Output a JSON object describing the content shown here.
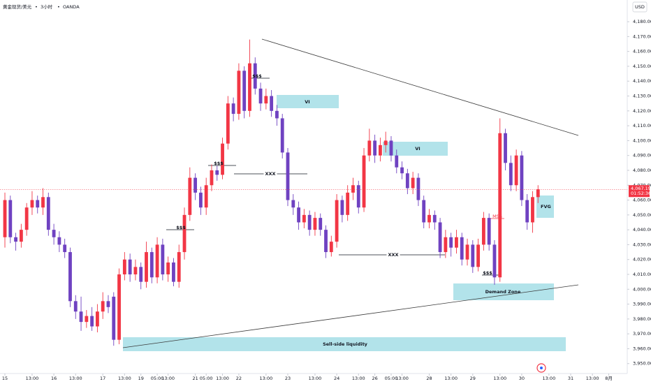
{
  "chart_data": {
    "type": "candlestick",
    "symbol": "黄金现货/美元",
    "interval": "3小时",
    "exchange": "OANDA",
    "currency": "USD",
    "up_color": "#f23645",
    "down_color": "#6f42c1",
    "xlim": [
      -0.9,
      114.4
    ],
    "ylim": [
      3943.3,
      4194.6
    ],
    "xticks": [
      {
        "value": 0,
        "label": "15"
      },
      {
        "value": 5,
        "label": "13:00"
      },
      {
        "value": 9,
        "label": "16"
      },
      {
        "value": 13,
        "label": "13:00"
      },
      {
        "value": 18,
        "label": "17"
      },
      {
        "value": 22,
        "label": "13:00"
      },
      {
        "value": 25,
        "label": "19"
      },
      {
        "value": 28,
        "label": "05:00"
      },
      {
        "value": 30,
        "label": "13:00"
      },
      {
        "value": 35,
        "label": "21"
      },
      {
        "value": 37,
        "label": "05:00"
      },
      {
        "value": 40,
        "label": "13:00"
      },
      {
        "value": 43,
        "label": "22"
      },
      {
        "value": 48,
        "label": "13:00"
      },
      {
        "value": 52,
        "label": "23"
      },
      {
        "value": 57,
        "label": "13:00"
      },
      {
        "value": 61,
        "label": "24"
      },
      {
        "value": 65,
        "label": "13:00"
      },
      {
        "value": 68,
        "label": "26"
      },
      {
        "value": 71,
        "label": "05:00"
      },
      {
        "value": 73,
        "label": "13:00"
      },
      {
        "value": 78,
        "label": "28"
      },
      {
        "value": 82,
        "label": "13:00"
      },
      {
        "value": 86,
        "label": "29"
      },
      {
        "value": 91,
        "label": "13:00"
      },
      {
        "value": 95,
        "label": "30"
      },
      {
        "value": 100,
        "label": "13:00"
      },
      {
        "value": 104,
        "label": "31"
      },
      {
        "value": 108,
        "label": "13:00"
      },
      {
        "value": 111,
        "label": "8月"
      }
    ],
    "yticks": [
      {
        "value": 3950,
        "label": "3,950.000"
      },
      {
        "value": 3960,
        "label": "3,960.000"
      },
      {
        "value": 3970,
        "label": "3,970.000"
      },
      {
        "value": 3980,
        "label": "3,980.000"
      },
      {
        "value": 3990,
        "label": "3,990.000"
      },
      {
        "value": 4000,
        "label": "4,000.000"
      },
      {
        "value": 4010,
        "label": "4,010.000"
      },
      {
        "value": 4020,
        "label": "4,020.000"
      },
      {
        "value": 4030,
        "label": "4,030.000"
      },
      {
        "value": 4040,
        "label": "4,040.000"
      },
      {
        "value": 4050,
        "label": "4,050.000"
      },
      {
        "value": 4060,
        "label": "4,060.000"
      },
      {
        "value": 4070,
        "label": "4,070.000"
      },
      {
        "value": 4080,
        "label": "4,080.000"
      },
      {
        "value": 4090,
        "label": "4,090.000"
      },
      {
        "value": 4100,
        "label": "4,100.000"
      },
      {
        "value": 4110,
        "label": "4,110.000"
      },
      {
        "value": 4120,
        "label": "4,120.000"
      },
      {
        "value": 4130,
        "label": "4,130.000"
      },
      {
        "value": 4140,
        "label": "4,140.000"
      },
      {
        "value": 4150,
        "label": "4,150.000"
      },
      {
        "value": 4160,
        "label": "4,160.000"
      },
      {
        "value": 4170,
        "label": "4,170.000"
      },
      {
        "value": 4180,
        "label": "4,180.000"
      }
    ],
    "last_price": {
      "value": 4067.19,
      "label": "4,067.190"
    },
    "countdown": "01:52:36",
    "annotations": [
      "VI",
      "VI",
      "FVG",
      "Demand Zone",
      "Sell-side liquidity",
      "$$$",
      "$$$",
      "$$$",
      "$$$",
      "XXX",
      "XXX",
      "MSS"
    ],
    "open": [
      4035,
      4060,
      4035,
      4032,
      4040,
      4055,
      4060,
      4055,
      4062,
      4040,
      4035,
      4030,
      4025,
      3992,
      3985,
      3978,
      3982,
      3975,
      3985,
      3992,
      3995,
      3966,
      4010,
      4020,
      4010,
      4015,
      4005,
      4025,
      4008,
      4030,
      4010,
      4018,
      4005,
      4025,
      4050,
      4075,
      4065,
      4055,
      4070,
      4080,
      4077,
      4098,
      4125,
      4118,
      4147,
      4120,
      4152,
      4135,
      4125,
      4130,
      4120,
      4115,
      4092,
      4060,
      4055,
      4045,
      4050,
      4040,
      4048,
      4040,
      4025,
      4032,
      4060,
      4050,
      4065,
      4070,
      4055,
      4090,
      4100,
      4090,
      4097,
      4100,
      4090,
      4082,
      4078,
      4068,
      4075,
      4060,
      4045,
      4050,
      4045,
      4025,
      4035,
      4028,
      4035,
      4020,
      4030,
      4015,
      4030,
      4048,
      4030,
      4008,
      4105,
      4085,
      4070,
      4090,
      4060,
      4045,
      4062
    ],
    "high": [
      4065,
      4063,
      4038,
      4044,
      4058,
      4066,
      4063,
      4068,
      4065,
      4044,
      4039,
      4034,
      4028,
      3996,
      3995,
      3986,
      3988,
      3990,
      3998,
      3996,
      3998,
      4014,
      4025,
      4024,
      4020,
      4018,
      4032,
      4028,
      4035,
      4034,
      4022,
      4021,
      4030,
      4055,
      4082,
      4078,
      4069,
      4075,
      4084,
      4083,
      4102,
      4130,
      4129,
      4152,
      4150,
      4168,
      4156,
      4139,
      4135,
      4134,
      4124,
      4118,
      4095,
      4064,
      4059,
      4054,
      4053,
      4052,
      4051,
      4043,
      4036,
      4064,
      4063,
      4070,
      4075,
      4073,
      4095,
      4108,
      4104,
      4102,
      4106,
      4103,
      4094,
      4086,
      4081,
      4079,
      4078,
      4063,
      4054,
      4053,
      4048,
      4040,
      4038,
      4040,
      4038,
      4034,
      4033,
      4034,
      4052,
      4051,
      4033,
      4115,
      4108,
      4090,
      4094,
      4093,
      4064,
      4066,
      4070
    ],
    "low": [
      4028,
      4031,
      4026,
      4028,
      4036,
      4050,
      4051,
      4050,
      4036,
      4030,
      4025,
      4021,
      3988,
      3980,
      3972,
      3974,
      3972,
      3971,
      3980,
      3984,
      3962,
      3963,
      4006,
      4005,
      4006,
      4000,
      4001,
      4004,
      4004,
      4006,
      4005,
      4002,
      4001,
      4020,
      4046,
      4060,
      4050,
      4050,
      4066,
      4073,
      4074,
      4094,
      4113,
      4114,
      4115,
      4116,
      4131,
      4120,
      4121,
      4116,
      4110,
      4088,
      4056,
      4050,
      4040,
      4041,
      4036,
      4036,
      4036,
      4021,
      4022,
      4028,
      4045,
      4046,
      4060,
      4051,
      4052,
      4086,
      4085,
      4086,
      4092,
      4086,
      4078,
      4074,
      4064,
      4064,
      4056,
      4041,
      4041,
      4040,
      4021,
      4021,
      4022,
      4024,
      4016,
      4016,
      4011,
      4012,
      4026,
      4026,
      4003,
      4005,
      4080,
      4066,
      4066,
      4056,
      4040,
      4038,
      4058
    ],
    "close": [
      4060,
      4035,
      4032,
      4040,
      4055,
      4060,
      4055,
      4062,
      4040,
      4035,
      4030,
      4025,
      3992,
      3985,
      3978,
      3982,
      3975,
      3985,
      3992,
      3988,
      3966,
      4010,
      4020,
      4010,
      4015,
      4005,
      4025,
      4008,
      4030,
      4010,
      4018,
      4005,
      4025,
      4050,
      4075,
      4065,
      4055,
      4070,
      4080,
      4077,
      4098,
      4125,
      4118,
      4147,
      4120,
      4152,
      4135,
      4125,
      4130,
      4120,
      4115,
      4092,
      4060,
      4055,
      4045,
      4050,
      4040,
      4048,
      4040,
      4025,
      4032,
      4060,
      4050,
      4065,
      4070,
      4055,
      4090,
      4100,
      4090,
      4097,
      4100,
      4090,
      4082,
      4078,
      4068,
      4075,
      4060,
      4045,
      4050,
      4045,
      4025,
      4035,
      4028,
      4035,
      4020,
      4030,
      4015,
      4030,
      4048,
      4030,
      4008,
      4105,
      4085,
      4070,
      4090,
      4060,
      4045,
      4062,
      4067.19
    ]
  }
}
